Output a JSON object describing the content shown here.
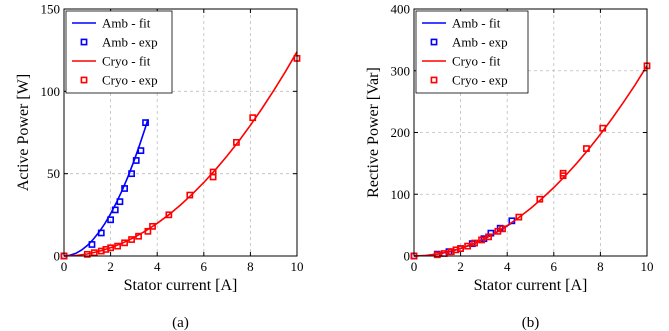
{
  "chart_data": [
    {
      "type": "scatter",
      "xlabel": "Stator current [A]",
      "ylabel": "Active Power [W]",
      "caption": "(a)",
      "xlim": [
        0,
        10
      ],
      "ylim": [
        0,
        150
      ],
      "xticks": [
        0,
        2,
        4,
        6,
        8,
        10
      ],
      "yticks": [
        0,
        50,
        100,
        150
      ],
      "grid": true,
      "legend_position": "top-left",
      "series": [
        {
          "name": "Amb - fit",
          "kind": "line",
          "color": "#0000ff",
          "coef": 6.4,
          "x": [
            0,
            0.25,
            0.5,
            0.75,
            1.0,
            1.25,
            1.5,
            1.75,
            2.0,
            2.25,
            2.5,
            2.75,
            3.0,
            3.25,
            3.5,
            3.6
          ]
        },
        {
          "name": "Amb - exp",
          "kind": "markers",
          "color": "#0000ff",
          "x": [
            0,
            1.2,
            1.6,
            2.0,
            2.2,
            2.4,
            2.6,
            2.9,
            3.1,
            3.3,
            3.5
          ],
          "y": [
            0,
            7,
            14,
            22,
            28,
            33,
            41,
            50,
            58,
            64,
            81
          ]
        },
        {
          "name": "Cryo - fit",
          "kind": "line",
          "color": "#ff0000",
          "coef": 1.24,
          "x": [
            0,
            0.5,
            1,
            1.5,
            2,
            2.5,
            3,
            3.5,
            4,
            4.5,
            5,
            5.5,
            6,
            6.5,
            7,
            7.5,
            8,
            8.5,
            9,
            9.5,
            10
          ]
        },
        {
          "name": "Cryo - exp",
          "kind": "markers",
          "color": "#ff0000",
          "x": [
            0,
            1.0,
            1.3,
            1.6,
            1.8,
            2.0,
            2.3,
            2.6,
            2.9,
            3.2,
            3.6,
            3.8,
            4.5,
            5.4,
            6.4,
            6.4,
            7.4,
            8.1,
            10.0
          ],
          "y": [
            0,
            1,
            2,
            3,
            4,
            5,
            6,
            8,
            10,
            12,
            15,
            18,
            25,
            37,
            48,
            51,
            69,
            84,
            120
          ]
        }
      ]
    },
    {
      "type": "scatter",
      "xlabel": "Stator current [A]",
      "ylabel": "Rective Power [Var]",
      "caption": "(b)",
      "xlim": [
        0,
        10
      ],
      "ylim": [
        0,
        400
      ],
      "xticks": [
        0,
        2,
        4,
        6,
        8,
        10
      ],
      "yticks": [
        0,
        100,
        200,
        300,
        400
      ],
      "grid": true,
      "legend_position": "top-left",
      "series": [
        {
          "name": "Amb - fit",
          "kind": "line",
          "color": "#0000ff",
          "coef": 3.05,
          "x": [
            0,
            0.5,
            1,
            1.5,
            2,
            2.5,
            3,
            3.5,
            4,
            4.2
          ]
        },
        {
          "name": "Amb - exp",
          "kind": "markers",
          "color": "#0000ff",
          "x": [
            0,
            1.0,
            1.5,
            2.0,
            2.5,
            3.0,
            3.3,
            3.7,
            4.2
          ],
          "y": [
            0,
            3,
            7,
            12,
            20,
            28,
            37,
            45,
            57
          ]
        },
        {
          "name": "Cryo - fit",
          "kind": "line",
          "color": "#ff0000",
          "coef": 3.08,
          "x": [
            0,
            0.5,
            1,
            1.5,
            2,
            2.5,
            3,
            3.5,
            4,
            4.5,
            5,
            5.5,
            6,
            6.5,
            7,
            7.5,
            8,
            8.5,
            9,
            9.5,
            10
          ]
        },
        {
          "name": "Cryo - exp",
          "kind": "markers",
          "color": "#ff0000",
          "x": [
            0,
            1.0,
            1.3,
            1.6,
            1.8,
            2.0,
            2.3,
            2.6,
            2.9,
            3.2,
            3.6,
            3.8,
            4.5,
            5.4,
            6.4,
            6.4,
            7.4,
            8.1,
            10.0
          ],
          "y": [
            0,
            2,
            4,
            7,
            10,
            12,
            16,
            21,
            26,
            31,
            40,
            44,
            63,
            92,
            130,
            134,
            174,
            207,
            308
          ]
        }
      ]
    }
  ]
}
